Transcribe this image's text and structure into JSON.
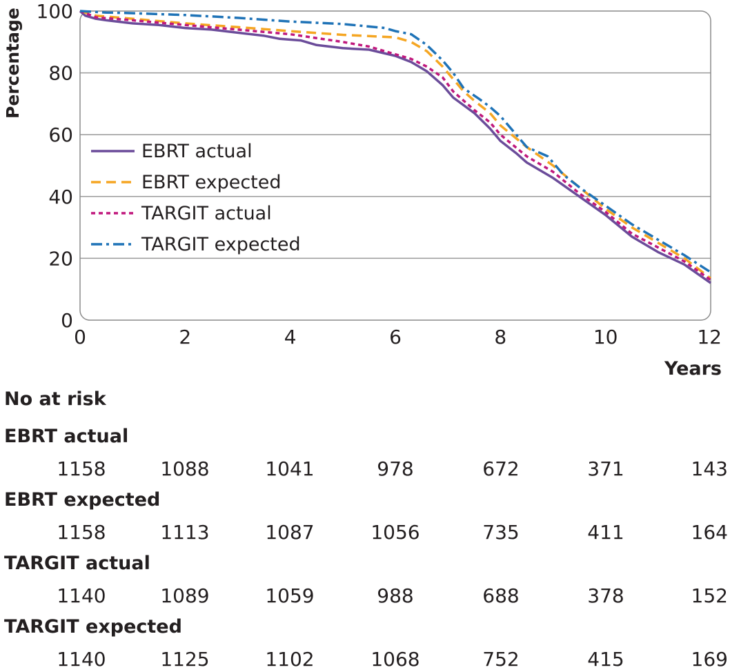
{
  "chart_data": {
    "type": "line",
    "ylabel": "Percentage",
    "xlabel": "Years",
    "xlim": [
      0,
      12
    ],
    "ylim": [
      0,
      100
    ],
    "x_ticks": [
      "0",
      "2",
      "4",
      "6",
      "8",
      "10",
      "12"
    ],
    "y_ticks": [
      "0",
      "20",
      "40",
      "60",
      "80",
      "100"
    ],
    "grid": "horizontal",
    "legend_position": "middle-left",
    "series": [
      {
        "name": "EBRT actual",
        "color": "#6b4c9a",
        "style": "solid",
        "points": [
          [
            0,
            100
          ],
          [
            0.1,
            98.5
          ],
          [
            0.3,
            97.5
          ],
          [
            0.5,
            97
          ],
          [
            1,
            96
          ],
          [
            1.5,
            95.5
          ],
          [
            2,
            94.5
          ],
          [
            2.5,
            94
          ],
          [
            3,
            93
          ],
          [
            3.5,
            92
          ],
          [
            3.8,
            91
          ],
          [
            4.2,
            90.5
          ],
          [
            4.5,
            89
          ],
          [
            5,
            88
          ],
          [
            5.5,
            87.5
          ],
          [
            6,
            85.5
          ],
          [
            6.3,
            83.5
          ],
          [
            6.6,
            80.5
          ],
          [
            6.9,
            76
          ],
          [
            7.1,
            72
          ],
          [
            7.5,
            67
          ],
          [
            7.8,
            62
          ],
          [
            8,
            58
          ],
          [
            8.3,
            54
          ],
          [
            8.5,
            51
          ],
          [
            9,
            46
          ],
          [
            9.5,
            40
          ],
          [
            10,
            34
          ],
          [
            10.5,
            27
          ],
          [
            11,
            22
          ],
          [
            11.5,
            18
          ],
          [
            12,
            12
          ]
        ]
      },
      {
        "name": "EBRT expected",
        "color": "#f5a623",
        "style": "dashed",
        "points": [
          [
            0,
            100
          ],
          [
            0.3,
            98.5
          ],
          [
            1,
            97.5
          ],
          [
            2,
            96
          ],
          [
            3,
            94.8
          ],
          [
            4,
            93.5
          ],
          [
            5,
            92.3
          ],
          [
            6,
            91.5
          ],
          [
            6.3,
            90
          ],
          [
            6.6,
            87
          ],
          [
            6.9,
            82
          ],
          [
            7.1,
            78
          ],
          [
            7.3,
            74
          ],
          [
            7.5,
            71
          ],
          [
            7.8,
            67
          ],
          [
            8,
            63
          ],
          [
            8.5,
            56
          ],
          [
            9,
            50
          ],
          [
            9.5,
            43
          ],
          [
            10,
            36
          ],
          [
            10.5,
            30
          ],
          [
            11,
            25
          ],
          [
            11.5,
            20
          ],
          [
            12,
            13.5
          ]
        ]
      },
      {
        "name": "TARGIT actual",
        "color": "#c0187d",
        "style": "dotted",
        "points": [
          [
            0,
            100
          ],
          [
            0.3,
            98
          ],
          [
            1,
            97
          ],
          [
            2,
            95.5
          ],
          [
            3,
            94
          ],
          [
            4,
            92.5
          ],
          [
            5,
            90
          ],
          [
            5.5,
            88.5
          ],
          [
            6,
            86
          ],
          [
            6.3,
            84.5
          ],
          [
            6.6,
            82
          ],
          [
            6.9,
            78.5
          ],
          [
            7.1,
            74
          ],
          [
            7.5,
            68
          ],
          [
            7.8,
            64
          ],
          [
            8,
            60
          ],
          [
            8.5,
            53
          ],
          [
            9,
            48
          ],
          [
            9.5,
            41
          ],
          [
            10,
            35
          ],
          [
            10.5,
            28
          ],
          [
            11,
            23.5
          ],
          [
            11.5,
            19
          ],
          [
            12,
            13
          ]
        ]
      },
      {
        "name": "TARGIT expected",
        "color": "#1f73b7",
        "style": "dashdot",
        "points": [
          [
            0,
            100
          ],
          [
            0.5,
            99.5
          ],
          [
            1,
            99.3
          ],
          [
            2,
            98.7
          ],
          [
            3,
            97.8
          ],
          [
            4,
            96.6
          ],
          [
            5,
            95.8
          ],
          [
            5.8,
            94.5
          ],
          [
            6,
            93.5
          ],
          [
            6.3,
            92.5
          ],
          [
            6.6,
            89
          ],
          [
            6.9,
            84
          ],
          [
            7.1,
            80
          ],
          [
            7.3,
            75
          ],
          [
            7.6,
            71.5
          ],
          [
            7.8,
            69
          ],
          [
            8,
            66
          ],
          [
            8.5,
            56
          ],
          [
            8.9,
            53
          ],
          [
            9.2,
            47
          ],
          [
            9.5,
            43
          ],
          [
            10,
            37
          ],
          [
            10.5,
            31
          ],
          [
            11,
            26
          ],
          [
            11.5,
            21
          ],
          [
            12,
            15.5
          ]
        ]
      }
    ]
  },
  "risk_table": {
    "title": "No at risk",
    "rows": [
      {
        "label": "EBRT actual",
        "values": [
          "1158",
          "1088",
          "1041",
          "978",
          "672",
          "371",
          "143"
        ]
      },
      {
        "label": "EBRT expected",
        "values": [
          "1158",
          "1113",
          "1087",
          "1056",
          "735",
          "411",
          "164"
        ]
      },
      {
        "label": "TARGIT actual",
        "values": [
          "1140",
          "1089",
          "1059",
          "988",
          "688",
          "378",
          "152"
        ]
      },
      {
        "label": "TARGIT expected",
        "values": [
          "1140",
          "1125",
          "1102",
          "1068",
          "752",
          "415",
          "169"
        ]
      }
    ]
  }
}
